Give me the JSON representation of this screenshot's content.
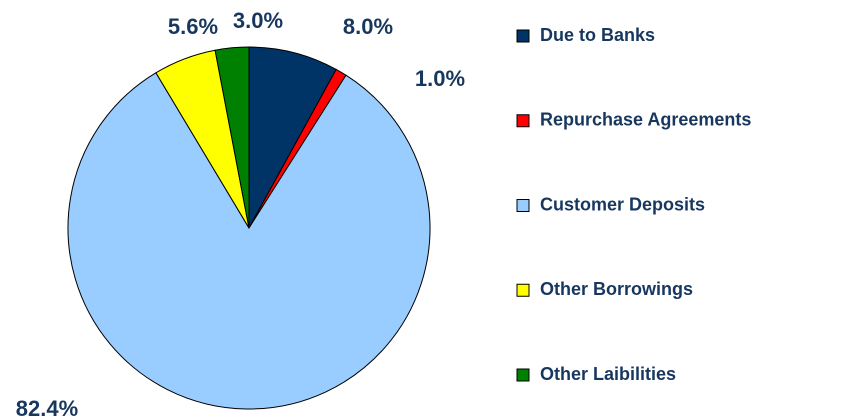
{
  "chart_data": {
    "type": "pie",
    "categories": [
      "Due to Banks",
      "Repurchase Agreements",
      "Customer Deposits",
      "Other Borrowings",
      "Other Laibilities"
    ],
    "values": [
      8.0,
      1.0,
      82.4,
      5.6,
      3.0
    ],
    "value_labels": [
      "8.0%",
      "1.0%",
      "82.4%",
      "5.6%",
      "3.0%"
    ],
    "colors": [
      "#003366",
      "#ff0000",
      "#99ccff",
      "#ffff00",
      "#008000"
    ],
    "legend": "right"
  }
}
